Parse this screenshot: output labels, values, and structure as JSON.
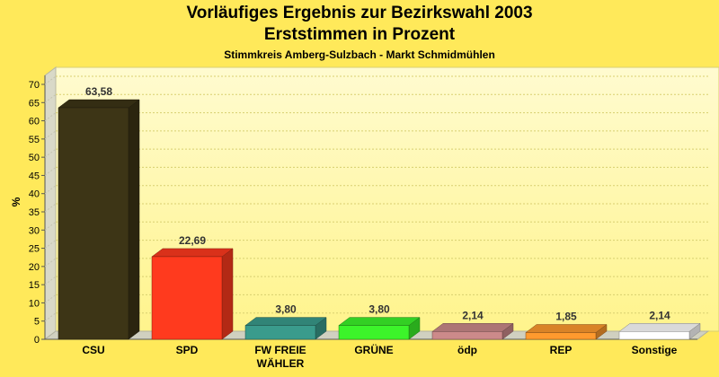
{
  "chart_data": {
    "type": "bar",
    "title": "Vorläufiges Ergebnis zur Bezirkswahl 2003",
    "title_line2": "Erststimmen in Prozent",
    "subtitle": "Stimmkreis Amberg-Sulzbach - Markt Schmidmühlen",
    "ylabel": "%",
    "xlabel": "",
    "ylim": [
      0,
      70
    ],
    "yticks": [
      0,
      5,
      10,
      15,
      20,
      25,
      30,
      35,
      40,
      45,
      50,
      55,
      60,
      65,
      70
    ],
    "grid": true,
    "categories": [
      [
        "CSU"
      ],
      [
        "SPD"
      ],
      [
        "FW FREIE",
        "WÄHLER"
      ],
      [
        "GRÜNE"
      ],
      [
        "ödp"
      ],
      [
        "REP"
      ],
      [
        "Sonstige"
      ]
    ],
    "values": [
      63.58,
      22.69,
      3.8,
      3.8,
      2.14,
      1.85,
      2.14
    ],
    "value_labels": [
      "63,58",
      "22,69",
      "3,80",
      "3,80",
      "2,14",
      "1,85",
      "2,14"
    ],
    "colors": [
      "#3d3516",
      "#ff3a1e",
      "#3a9b8c",
      "#3cf42a",
      "#cc8a8a",
      "#ff9a2e",
      "#ffffff"
    ]
  }
}
